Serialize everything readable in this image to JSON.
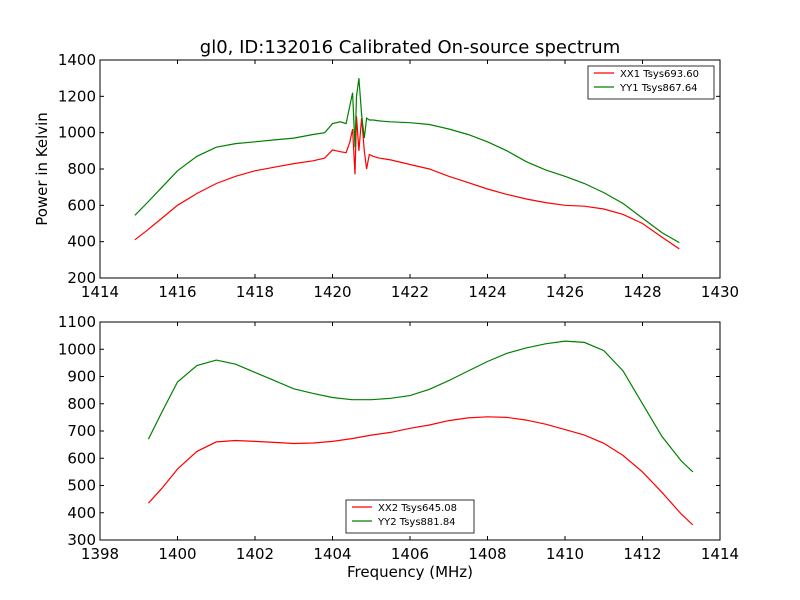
{
  "figure": {
    "title": "gl0, ID:132016 Calibrated On-source spectrum",
    "ylabel": "Power in Kelvin",
    "xlabel": "Frequency (MHz)"
  },
  "chart_data": [
    {
      "type": "line",
      "title": "gl0, ID:132016 Calibrated On-source spectrum",
      "xlabel": "",
      "ylabel": "Power in Kelvin",
      "xlim": [
        1414,
        1430
      ],
      "ylim": [
        200,
        1400
      ],
      "xticks": [
        1414,
        1416,
        1418,
        1420,
        1422,
        1424,
        1426,
        1428,
        1430
      ],
      "yticks": [
        200,
        400,
        600,
        800,
        1000,
        1200,
        1400
      ],
      "legend": "top-right",
      "grid": false,
      "series": [
        {
          "name": "XX1 Tsys693.60",
          "color": "#ff0000",
          "x": [
            1414.9,
            1415.2,
            1415.6,
            1416.0,
            1416.5,
            1417.0,
            1417.5,
            1418.0,
            1418.5,
            1419.0,
            1419.5,
            1419.8,
            1420.0,
            1420.2,
            1420.35,
            1420.45,
            1420.52,
            1420.58,
            1420.62,
            1420.68,
            1420.75,
            1420.82,
            1420.88,
            1420.95,
            1421.05,
            1421.2,
            1421.5,
            1422.0,
            1422.5,
            1423.0,
            1423.5,
            1424.0,
            1424.5,
            1425.0,
            1425.5,
            1426.0,
            1426.5,
            1427.0,
            1427.5,
            1428.0,
            1428.5,
            1428.95
          ],
          "y": [
            410,
            460,
            530,
            600,
            665,
            720,
            760,
            790,
            810,
            830,
            845,
            860,
            905,
            895,
            890,
            950,
            1020,
            770,
            1090,
            900,
            1080,
            900,
            800,
            880,
            870,
            860,
            850,
            825,
            800,
            760,
            725,
            690,
            660,
            635,
            615,
            600,
            595,
            580,
            550,
            500,
            425,
            360
          ]
        },
        {
          "name": "YY1 Tsys867.64",
          "color": "#008000",
          "x": [
            1414.9,
            1415.2,
            1415.6,
            1416.0,
            1416.5,
            1417.0,
            1417.5,
            1418.0,
            1418.5,
            1419.0,
            1419.5,
            1419.8,
            1420.0,
            1420.2,
            1420.35,
            1420.45,
            1420.52,
            1420.58,
            1420.62,
            1420.68,
            1420.75,
            1420.82,
            1420.88,
            1420.95,
            1421.05,
            1421.2,
            1421.5,
            1422.0,
            1422.5,
            1423.0,
            1423.5,
            1424.0,
            1424.5,
            1425.0,
            1425.5,
            1426.0,
            1426.5,
            1427.0,
            1427.5,
            1428.0,
            1428.5,
            1428.95
          ],
          "y": [
            545,
            610,
            700,
            790,
            870,
            920,
            940,
            950,
            960,
            970,
            990,
            1000,
            1050,
            1060,
            1050,
            1150,
            1220,
            920,
            1200,
            1300,
            1100,
            970,
            1080,
            1070,
            1070,
            1065,
            1060,
            1055,
            1045,
            1020,
            990,
            950,
            900,
            840,
            795,
            760,
            720,
            670,
            610,
            530,
            450,
            395
          ]
        }
      ]
    },
    {
      "type": "line",
      "title": "",
      "xlabel": "Frequency (MHz)",
      "ylabel": "",
      "xlim": [
        1398,
        1414
      ],
      "ylim": [
        300,
        1100
      ],
      "xticks": [
        1398,
        1400,
        1402,
        1404,
        1406,
        1408,
        1410,
        1412,
        1414
      ],
      "yticks": [
        300,
        400,
        500,
        600,
        700,
        800,
        900,
        1000,
        1100
      ],
      "legend": "bottom-center",
      "grid": false,
      "series": [
        {
          "name": "XX2 Tsys645.08",
          "color": "#ff0000",
          "x": [
            1399.25,
            1399.6,
            1400.0,
            1400.5,
            1401.0,
            1401.5,
            1402.0,
            1402.5,
            1403.0,
            1403.5,
            1404.0,
            1404.5,
            1405.0,
            1405.5,
            1406.0,
            1406.5,
            1407.0,
            1407.5,
            1408.0,
            1408.5,
            1409.0,
            1409.5,
            1410.0,
            1410.5,
            1411.0,
            1411.5,
            1412.0,
            1412.5,
            1413.0,
            1413.3
          ],
          "y": [
            435,
            490,
            560,
            625,
            660,
            665,
            662,
            658,
            654,
            656,
            662,
            672,
            685,
            695,
            710,
            722,
            738,
            748,
            752,
            750,
            740,
            725,
            705,
            685,
            655,
            610,
            550,
            475,
            395,
            355
          ]
        },
        {
          "name": "YY2 Tsys881.84",
          "color": "#008000",
          "x": [
            1399.25,
            1399.6,
            1400.0,
            1400.5,
            1401.0,
            1401.5,
            1402.0,
            1402.5,
            1403.0,
            1403.5,
            1404.0,
            1404.5,
            1405.0,
            1405.5,
            1406.0,
            1406.5,
            1407.0,
            1407.5,
            1408.0,
            1408.5,
            1409.0,
            1409.5,
            1410.0,
            1410.5,
            1411.0,
            1411.5,
            1412.0,
            1412.5,
            1413.0,
            1413.3
          ],
          "y": [
            670,
            770,
            880,
            940,
            960,
            945,
            915,
            885,
            855,
            838,
            823,
            815,
            815,
            820,
            830,
            853,
            885,
            920,
            955,
            985,
            1005,
            1020,
            1030,
            1025,
            995,
            920,
            800,
            680,
            590,
            550
          ]
        }
      ]
    }
  ]
}
